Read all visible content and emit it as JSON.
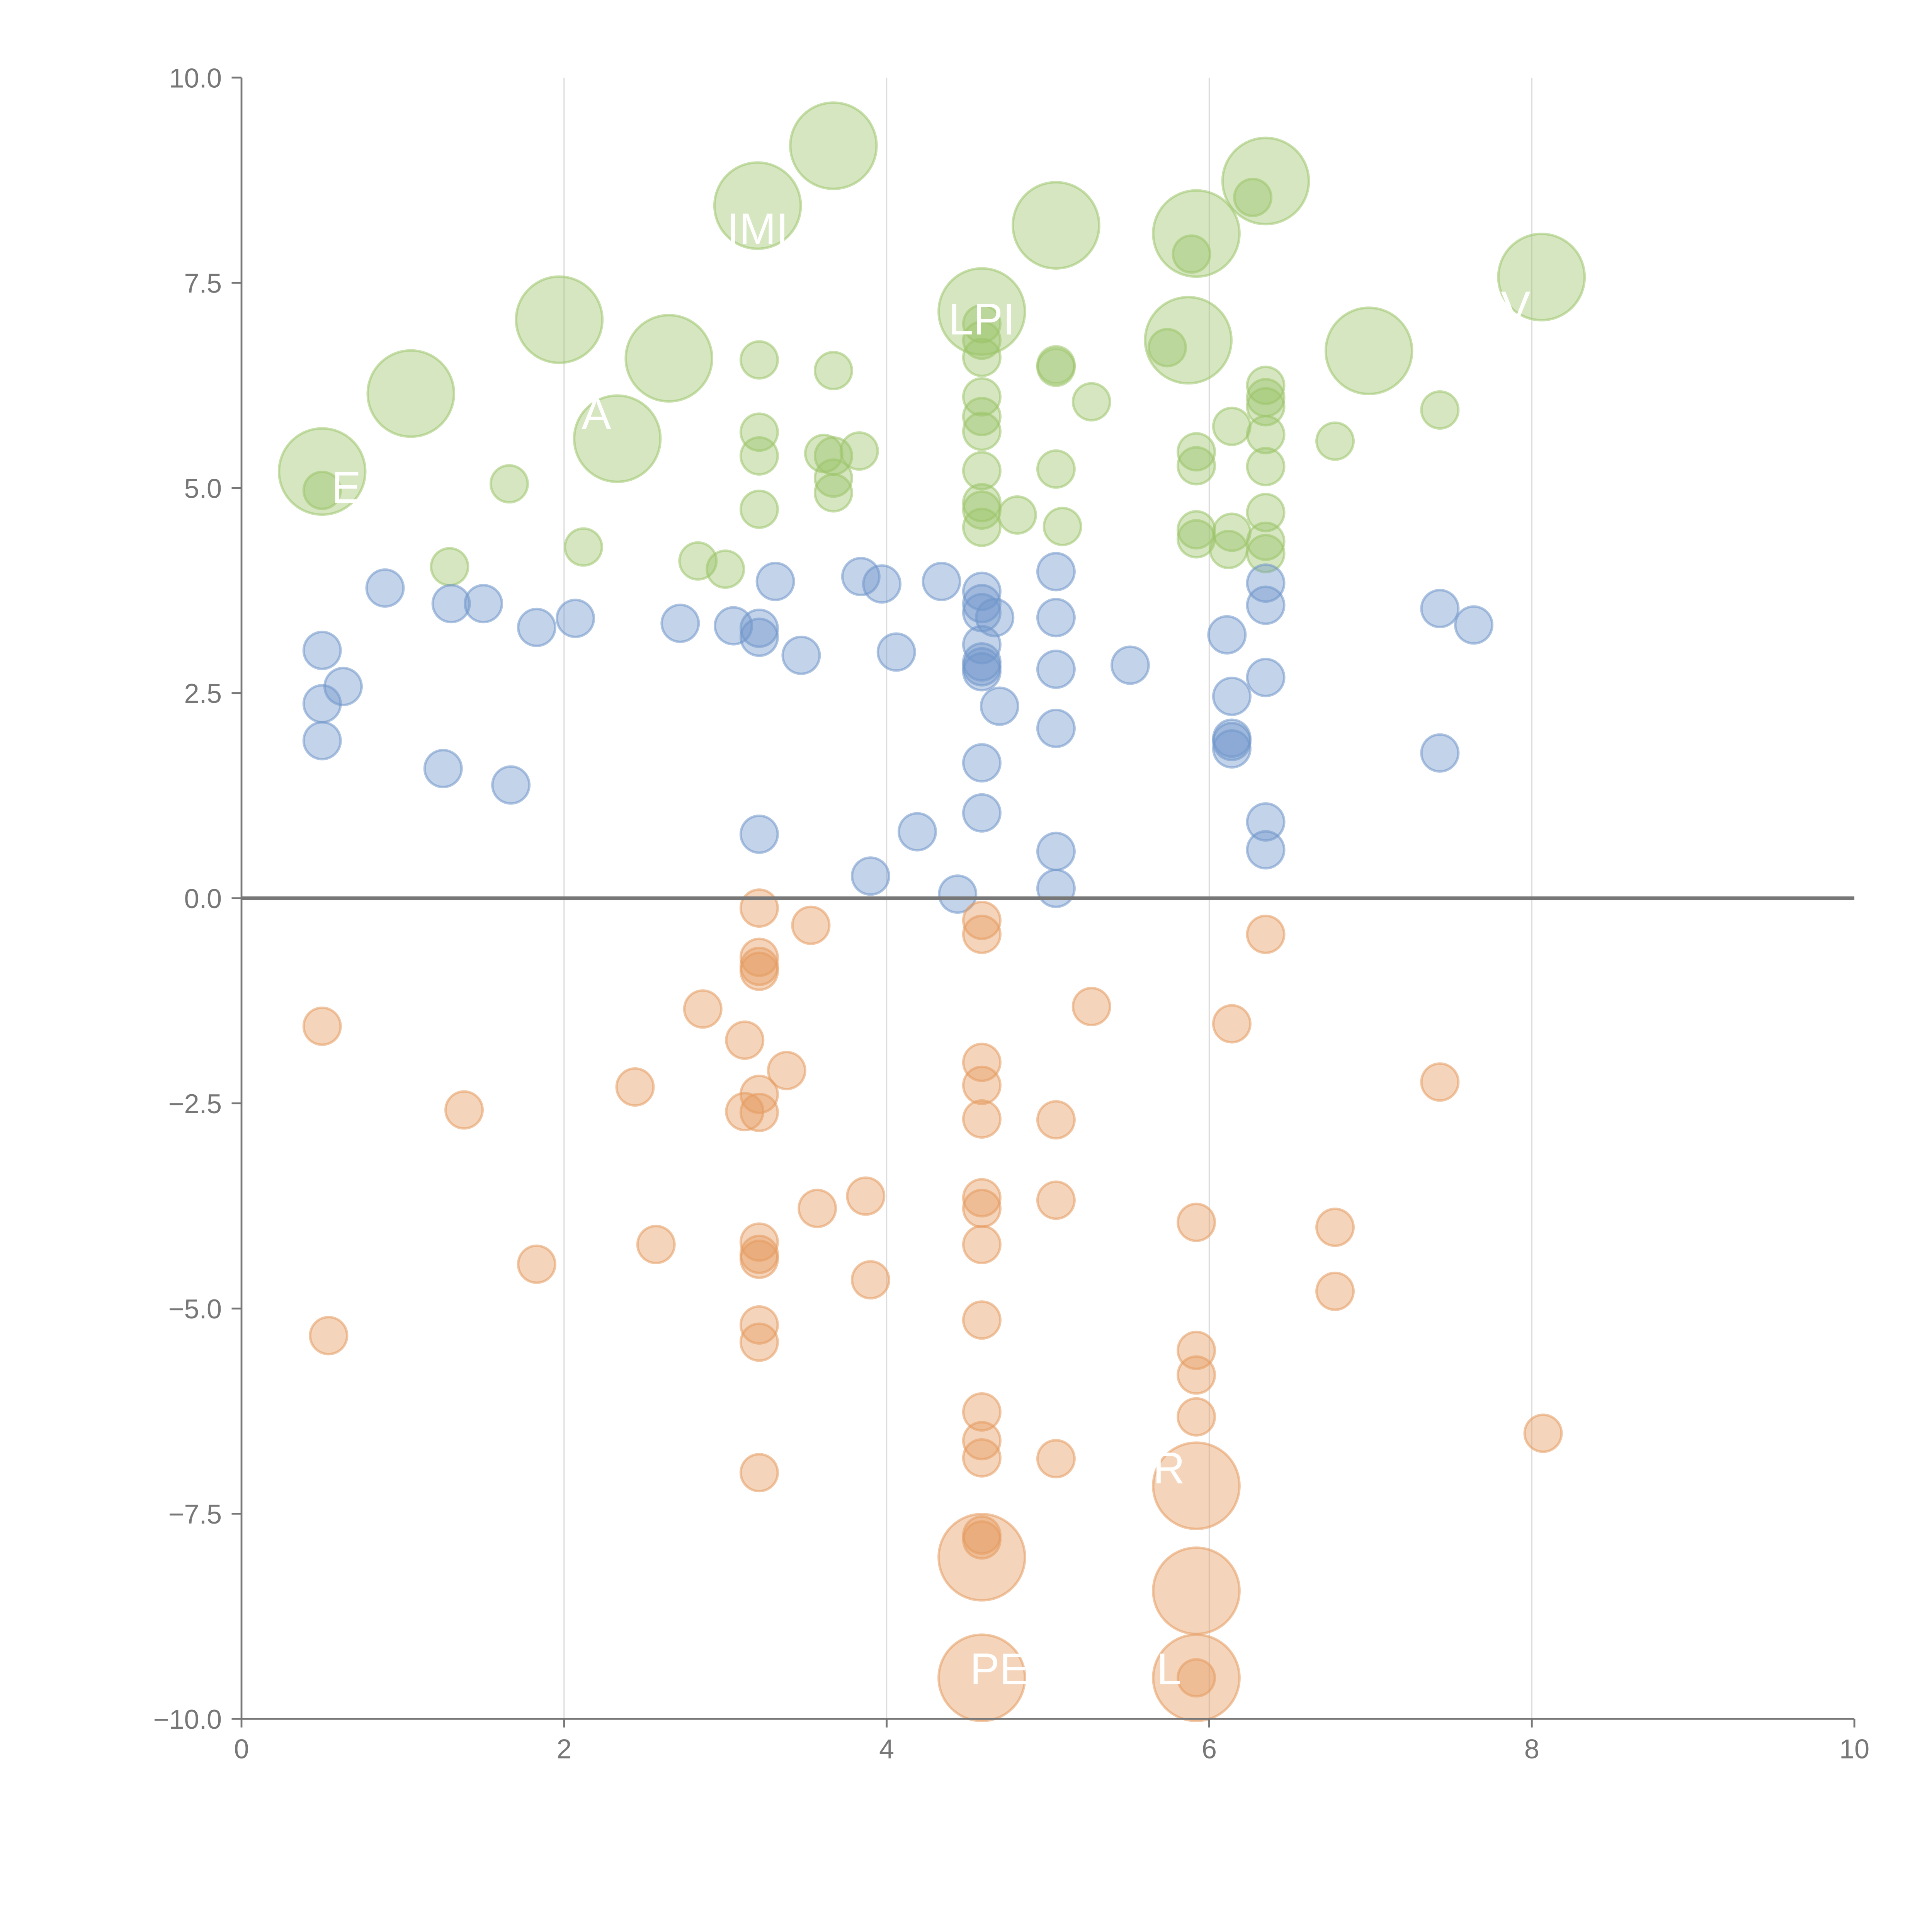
{
  "chart_data": {
    "type": "scatter",
    "title": "",
    "xlabel": "",
    "ylabel": "",
    "xlim": [
      0,
      10
    ],
    "ylim": [
      -10,
      10
    ],
    "grid": "vertical",
    "x_ticks": [
      "0",
      "2",
      "4",
      "6",
      "8",
      "10"
    ],
    "x_tick_values": [
      0,
      2,
      4,
      6,
      8,
      10
    ],
    "y_ticks": [
      "10.0",
      "7.5",
      "5.0",
      "2.5",
      "0.0",
      "−2.5",
      "−5.0",
      "−7.5",
      "−10.0"
    ],
    "y_tick_values": [
      10,
      7.5,
      5,
      2.5,
      0,
      -2.5,
      -5,
      -7.5,
      -10
    ],
    "size_note": "point size 1 = small bubble, 2 = large bubble",
    "series": [
      {
        "name": "green",
        "color": "#9cc46a",
        "points": [
          [
            0.5,
            5.2,
            2
          ],
          [
            1.05,
            6.15,
            2
          ],
          [
            1.97,
            7.05,
            2
          ],
          [
            2.33,
            5.6,
            2
          ],
          [
            2.65,
            6.58,
            2
          ],
          [
            3.2,
            8.44,
            2
          ],
          [
            3.67,
            9.17,
            2
          ],
          [
            4.59,
            7.15,
            2
          ],
          [
            5.05,
            8.2,
            2
          ],
          [
            5.92,
            8.1,
            2
          ],
          [
            5.87,
            6.8,
            2
          ],
          [
            6.35,
            8.74,
            2
          ],
          [
            6.99,
            6.67,
            2
          ],
          [
            8.06,
            7.57,
            2
          ],
          [
            0.5,
            4.97,
            1
          ],
          [
            1.29,
            4.04,
            1
          ],
          [
            1.66,
            5.05,
            1
          ],
          [
            2.12,
            4.28,
            1
          ],
          [
            2.83,
            4.11,
            1
          ],
          [
            3.0,
            4.01,
            1
          ],
          [
            3.21,
            6.56,
            1
          ],
          [
            3.21,
            5.68,
            1
          ],
          [
            3.21,
            5.39,
            1
          ],
          [
            3.21,
            4.74,
            1
          ],
          [
            3.67,
            6.43,
            1
          ],
          [
            3.61,
            5.42,
            1
          ],
          [
            3.67,
            5.39,
            1
          ],
          [
            3.67,
            5.12,
            1
          ],
          [
            3.67,
            4.94,
            1
          ],
          [
            3.83,
            5.45,
            1
          ],
          [
            4.59,
            7.0,
            1
          ],
          [
            4.59,
            6.8,
            1
          ],
          [
            4.59,
            6.59,
            1
          ],
          [
            4.59,
            6.11,
            1
          ],
          [
            4.59,
            5.87,
            1
          ],
          [
            4.59,
            5.69,
            1
          ],
          [
            4.59,
            5.21,
            1
          ],
          [
            4.59,
            4.82,
            1
          ],
          [
            4.59,
            4.73,
            1
          ],
          [
            4.59,
            4.52,
            1
          ],
          [
            4.81,
            4.67,
            1
          ],
          [
            5.05,
            6.5,
            1
          ],
          [
            5.05,
            6.47,
            1
          ],
          [
            5.05,
            5.23,
            1
          ],
          [
            5.09,
            4.53,
            1
          ],
          [
            5.27,
            6.05,
            1
          ],
          [
            5.74,
            6.71,
            1
          ],
          [
            5.89,
            7.85,
            1
          ],
          [
            6.27,
            8.54,
            1
          ],
          [
            5.92,
            5.44,
            1
          ],
          [
            5.92,
            5.27,
            1
          ],
          [
            5.92,
            4.49,
            1
          ],
          [
            5.92,
            4.38,
            1
          ],
          [
            6.14,
            5.75,
            1
          ],
          [
            6.14,
            4.46,
            1
          ],
          [
            6.12,
            4.25,
            1
          ],
          [
            6.35,
            6.25,
            1
          ],
          [
            6.35,
            6.1,
            1
          ],
          [
            6.35,
            5.99,
            1
          ],
          [
            6.35,
            5.65,
            1
          ],
          [
            6.35,
            5.26,
            1
          ],
          [
            6.35,
            4.7,
            1
          ],
          [
            6.35,
            4.35,
            1
          ],
          [
            6.35,
            4.2,
            1
          ],
          [
            6.78,
            5.57,
            1
          ],
          [
            7.43,
            5.95,
            1
          ]
        ]
      },
      {
        "name": "blue",
        "color": "#6f96cb",
        "points": [
          [
            0.5,
            3.02,
            1
          ],
          [
            0.5,
            2.37,
            1
          ],
          [
            0.5,
            1.92,
            1
          ],
          [
            0.63,
            2.58,
            1
          ],
          [
            0.89,
            3.78,
            1
          ],
          [
            1.25,
            1.58,
            1
          ],
          [
            1.3,
            3.59,
            1
          ],
          [
            1.5,
            3.59,
            1
          ],
          [
            1.67,
            1.38,
            1
          ],
          [
            1.83,
            3.3,
            1
          ],
          [
            2.07,
            3.41,
            1
          ],
          [
            2.72,
            3.35,
            1
          ],
          [
            3.05,
            3.32,
            1
          ],
          [
            3.21,
            3.29,
            1
          ],
          [
            3.21,
            3.18,
            1
          ],
          [
            3.31,
            3.86,
            1
          ],
          [
            3.47,
            2.96,
            1
          ],
          [
            3.21,
            0.78,
            1
          ],
          [
            3.84,
            3.92,
            1
          ],
          [
            3.97,
            3.83,
            1
          ],
          [
            4.06,
            3.0,
            1
          ],
          [
            3.9,
            0.27,
            1
          ],
          [
            4.19,
            0.81,
            1
          ],
          [
            4.34,
            3.86,
            1
          ],
          [
            4.44,
            0.05,
            1
          ],
          [
            4.59,
            3.74,
            1
          ],
          [
            4.59,
            3.59,
            1
          ],
          [
            4.59,
            3.48,
            1
          ],
          [
            4.67,
            3.42,
            1
          ],
          [
            4.59,
            3.09,
            1
          ],
          [
            4.59,
            2.88,
            1
          ],
          [
            4.59,
            2.82,
            1
          ],
          [
            4.59,
            2.76,
            1
          ],
          [
            4.7,
            2.34,
            1
          ],
          [
            4.59,
            1.65,
            1
          ],
          [
            4.59,
            1.04,
            1
          ],
          [
            5.05,
            3.98,
            1
          ],
          [
            5.05,
            3.42,
            1
          ],
          [
            5.05,
            2.79,
            1
          ],
          [
            5.05,
            2.07,
            1
          ],
          [
            5.05,
            0.57,
            1
          ],
          [
            5.05,
            0.12,
            1
          ],
          [
            5.51,
            2.84,
            1
          ],
          [
            6.11,
            3.21,
            1
          ],
          [
            6.14,
            2.46,
            1
          ],
          [
            6.14,
            1.95,
            1
          ],
          [
            6.14,
            1.91,
            1
          ],
          [
            6.14,
            1.82,
            1
          ],
          [
            6.35,
            3.84,
            1
          ],
          [
            6.35,
            3.57,
            1
          ],
          [
            6.35,
            2.69,
            1
          ],
          [
            6.35,
            0.93,
            1
          ],
          [
            6.35,
            0.59,
            1
          ],
          [
            7.43,
            3.53,
            1
          ],
          [
            7.64,
            3.33,
            1
          ],
          [
            7.43,
            1.77,
            1
          ]
        ]
      },
      {
        "name": "orange",
        "color": "#e59a5f",
        "points": [
          [
            0.5,
            -1.56,
            1
          ],
          [
            0.54,
            -5.33,
            1
          ],
          [
            1.38,
            -2.58,
            1
          ],
          [
            1.83,
            -4.46,
            1
          ],
          [
            2.44,
            -2.3,
            1
          ],
          [
            2.57,
            -4.22,
            1
          ],
          [
            2.86,
            -1.35,
            1
          ],
          [
            3.12,
            -1.73,
            1
          ],
          [
            3.12,
            -2.6,
            1
          ],
          [
            3.21,
            -0.12,
            1
          ],
          [
            3.21,
            -0.72,
            1
          ],
          [
            3.21,
            -0.83,
            1
          ],
          [
            3.21,
            -0.89,
            1
          ],
          [
            3.21,
            -2.39,
            1
          ],
          [
            3.21,
            -2.61,
            1
          ],
          [
            3.38,
            -2.1,
            1
          ],
          [
            3.53,
            -0.33,
            1
          ],
          [
            3.21,
            -4.19,
            1
          ],
          [
            3.21,
            -4.34,
            1
          ],
          [
            3.21,
            -4.4,
            1
          ],
          [
            3.21,
            -5.2,
            1
          ],
          [
            3.21,
            -5.41,
            1
          ],
          [
            3.21,
            -7.0,
            1
          ],
          [
            3.57,
            -3.78,
            1
          ],
          [
            3.87,
            -3.63,
            1
          ],
          [
            3.9,
            -4.65,
            1
          ],
          [
            4.59,
            -0.27,
            1
          ],
          [
            4.59,
            -0.44,
            1
          ],
          [
            4.59,
            -2.0,
            1
          ],
          [
            4.59,
            -2.28,
            1
          ],
          [
            4.59,
            -2.69,
            1
          ],
          [
            4.59,
            -3.65,
            1
          ],
          [
            4.59,
            -3.78,
            1
          ],
          [
            4.59,
            -4.22,
            1
          ],
          [
            4.59,
            -5.14,
            1
          ],
          [
            4.59,
            -6.26,
            1
          ],
          [
            4.59,
            -6.61,
            1
          ],
          [
            4.59,
            -6.82,
            1
          ],
          [
            4.59,
            -7.76,
            1
          ],
          [
            4.59,
            -7.82,
            1
          ],
          [
            5.05,
            -2.7,
            1
          ],
          [
            5.05,
            -3.68,
            1
          ],
          [
            5.05,
            -6.83,
            1
          ],
          [
            5.27,
            -1.32,
            1
          ],
          [
            5.92,
            -3.95,
            1
          ],
          [
            5.92,
            -5.51,
            1
          ],
          [
            5.92,
            -5.81,
            1
          ],
          [
            5.92,
            -6.32,
            1
          ],
          [
            5.92,
            -9.5,
            1
          ],
          [
            6.14,
            -1.53,
            1
          ],
          [
            6.35,
            -0.44,
            1
          ],
          [
            6.78,
            -4.01,
            1
          ],
          [
            6.78,
            -4.79,
            1
          ],
          [
            7.43,
            -2.24,
            1
          ],
          [
            8.07,
            -6.52,
            1
          ],
          [
            4.59,
            -8.03,
            2
          ],
          [
            4.59,
            -9.5,
            2
          ],
          [
            5.92,
            -7.16,
            2
          ],
          [
            5.92,
            -8.44,
            2
          ],
          [
            5.92,
            -9.5,
            2
          ]
        ]
      }
    ],
    "annotations": [
      {
        "text": "E",
        "x": 0.65,
        "y": 5.0
      },
      {
        "text": "A",
        "x": 2.2,
        "y": 5.9
      },
      {
        "text": "IMI",
        "x": 3.2,
        "y": 8.15
      },
      {
        "text": "LPI",
        "x": 4.59,
        "y": 7.05
      },
      {
        "text": "V",
        "x": 7.9,
        "y": 7.2
      },
      {
        "text": "R",
        "x": 5.75,
        "y": -6.95
      },
      {
        "text": "PE",
        "x": 4.7,
        "y": -9.4
      },
      {
        "text": "L",
        "x": 5.75,
        "y": -9.4
      }
    ]
  }
}
